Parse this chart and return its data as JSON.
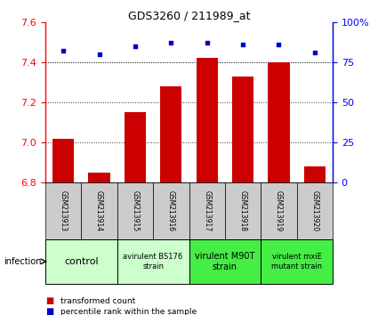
{
  "title": "GDS3260 / 211989_at",
  "samples": [
    "GSM213913",
    "GSM213914",
    "GSM213915",
    "GSM213916",
    "GSM213917",
    "GSM213918",
    "GSM213919",
    "GSM213920"
  ],
  "bar_values": [
    7.02,
    6.85,
    7.15,
    7.28,
    7.42,
    7.33,
    7.4,
    6.88
  ],
  "percentile_values": [
    82,
    80,
    85,
    87,
    87,
    86,
    86,
    81
  ],
  "bar_color": "#cc0000",
  "dot_color": "#0000cc",
  "bar_base": 6.8,
  "ylim_left": [
    6.8,
    7.6
  ],
  "ylim_right": [
    0,
    100
  ],
  "yticks_left": [
    6.8,
    7.0,
    7.2,
    7.4,
    7.6
  ],
  "yticks_right": [
    0,
    25,
    50,
    75,
    100
  ],
  "sample_box_color": "#cccccc",
  "group_info": [
    {
      "span": [
        0,
        1
      ],
      "label": "control",
      "color": "#ccffcc",
      "fontsize": 8
    },
    {
      "span": [
        2,
        3
      ],
      "label": "avirulent BS176\nstrain",
      "color": "#ccffcc",
      "fontsize": 6
    },
    {
      "span": [
        4,
        5
      ],
      "label": "virulent M90T\nstrain",
      "color": "#44ee44",
      "fontsize": 7
    },
    {
      "span": [
        6,
        7
      ],
      "label": "virulent mxiE\nmutant strain",
      "color": "#44ee44",
      "fontsize": 6
    }
  ],
  "infection_label": "infection",
  "legend_bar_label": "transformed count",
  "legend_dot_label": "percentile rank within the sample",
  "dotted_line_color": "#333333",
  "background_color": "#ffffff",
  "right_tick_label_100": "100%"
}
